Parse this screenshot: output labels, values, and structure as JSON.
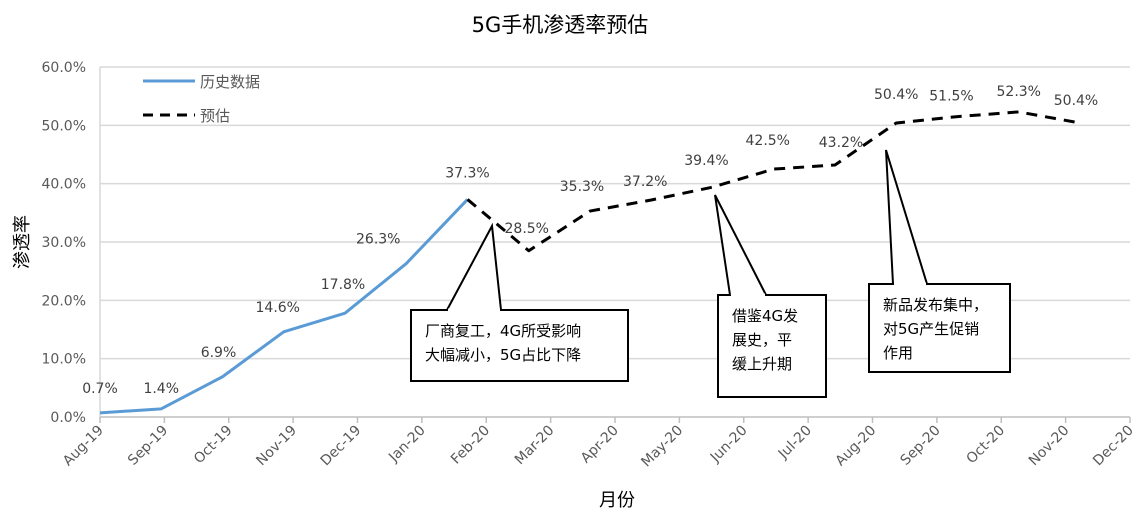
{
  "chart_data": {
    "type": "line",
    "title": "5G手机渗透率预估",
    "xlabel": "月份",
    "ylabel": "渗透率",
    "ylim": [
      0,
      60
    ],
    "yticks": [
      "0.0%",
      "10.0%",
      "20.0%",
      "30.0%",
      "40.0%",
      "50.0%",
      "60.0%"
    ],
    "xticks": [
      "Aug-19",
      "Sep-19",
      "Oct-19",
      "Nov-19",
      "Dec-19",
      "Jan-20",
      "Feb-20",
      "Mar-20",
      "Apr-20",
      "May-20",
      "Jun-20",
      "Jul-20",
      "Aug-20",
      "Sep-20",
      "Oct-20",
      "Nov-20",
      "Dec-20"
    ],
    "grid": "horizontal",
    "legend_position": "top-left",
    "series": [
      {
        "name": "历史数据",
        "style": "solid",
        "color": "#5B9BD5",
        "x": [
          "Aug-19",
          "Sep-19",
          "Oct-19",
          "Nov-19",
          "Dec-19",
          "Jan-20",
          "Feb-20"
        ],
        "values": [
          0.7,
          1.4,
          6.9,
          14.6,
          17.8,
          26.3,
          37.3
        ]
      },
      {
        "name": "预估",
        "style": "dashed",
        "color": "#000000",
        "x": [
          "Feb-20",
          "Mar-20",
          "Apr-20",
          "May-20",
          "Jun-20",
          "Jul-20",
          "Aug-20",
          "Sep-20",
          "Oct-20",
          "Nov-20",
          "Dec-20"
        ],
        "values": [
          37.3,
          28.5,
          35.3,
          37.2,
          39.4,
          42.5,
          43.2,
          50.4,
          51.5,
          52.3,
          50.4
        ]
      }
    ],
    "data_labels": [
      "0.7%",
      "1.4%",
      "6.9%",
      "14.6%",
      "17.8%",
      "26.3%",
      "37.3%",
      "28.5%",
      "35.3%",
      "37.2%",
      "39.4%",
      "42.5%",
      "43.2%",
      "50.4%",
      "51.5%",
      "52.3%",
      "50.4%"
    ],
    "annotations": [
      {
        "target": "Mar-20",
        "lines": [
          "厂商复工，4G所受影响",
          "大幅减小，5G占比下降"
        ]
      },
      {
        "target": "Jun-20",
        "lines": [
          "借鉴4G发",
          "展史，平",
          "缓上升期"
        ]
      },
      {
        "target": "Sep-20",
        "lines": [
          "新品发布集中，",
          "对5G产生促销",
          "作用"
        ]
      }
    ]
  }
}
